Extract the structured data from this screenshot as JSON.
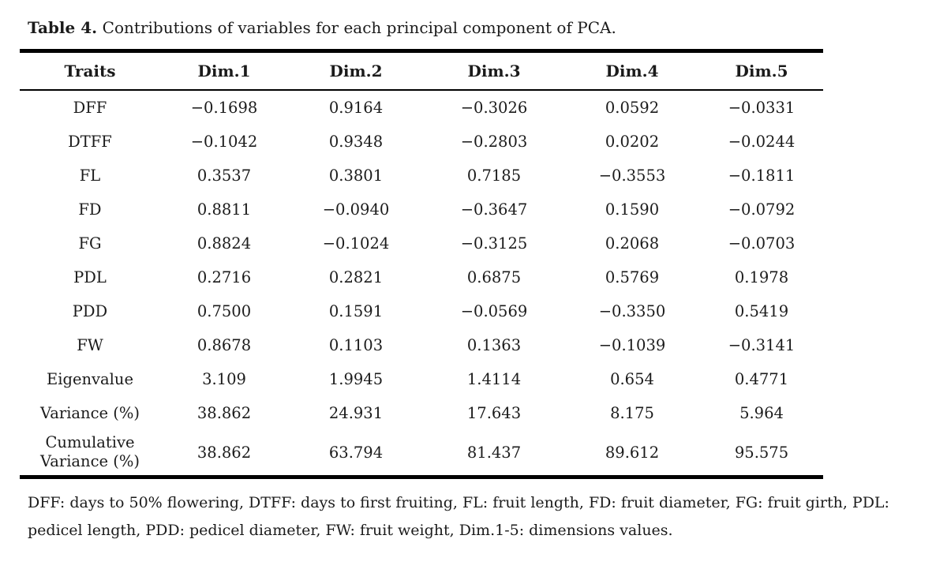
{
  "page": {
    "title_label": "Table 4.",
    "title_text": "Contributions of variables for each principal component of PCA.",
    "footnote": "DFF: days to 50% flowering, DTFF: days to first fruiting, FL: fruit length, FD: fruit diameter, FG: fruit girth, PDL: pedicel length, PDD: pedicel diameter, FW: fruit weight, Dim.1-5: dimensions values."
  },
  "table": {
    "columns": [
      "Traits",
      "Dim.1",
      "Dim.2",
      "Dim.3",
      "Dim.4",
      "Dim.5"
    ],
    "rows": [
      {
        "trait": "DFF",
        "values": [
          "−0.1698",
          "0.9164",
          "−0.3026",
          "0.0592",
          "−0.0331"
        ]
      },
      {
        "trait": "DTFF",
        "values": [
          "−0.1042",
          "0.9348",
          "−0.2803",
          "0.0202",
          "−0.0244"
        ]
      },
      {
        "trait": "FL",
        "values": [
          "0.3537",
          "0.3801",
          "0.7185",
          "−0.3553",
          "−0.1811"
        ]
      },
      {
        "trait": "FD",
        "values": [
          "0.8811",
          "−0.0940",
          "−0.3647",
          "0.1590",
          "−0.0792"
        ]
      },
      {
        "trait": "FG",
        "values": [
          "0.8824",
          "−0.1024",
          "−0.3125",
          "0.2068",
          "−0.0703"
        ]
      },
      {
        "trait": "PDL",
        "values": [
          "0.2716",
          "0.2821",
          "0.6875",
          "0.5769",
          "0.1978"
        ]
      },
      {
        "trait": "PDD",
        "values": [
          "0.7500",
          "0.1591",
          "−0.0569",
          "−0.3350",
          "0.5419"
        ]
      },
      {
        "trait": "FW",
        "values": [
          "0.8678",
          "0.1103",
          "0.1363",
          "−0.1039",
          "−0.3141"
        ]
      },
      {
        "trait": "Eigenvalue",
        "values": [
          "3.109",
          "1.9945",
          "1.4114",
          "0.654",
          "0.4771"
        ]
      },
      {
        "trait": "Variance (%)",
        "values": [
          "38.862",
          "24.931",
          "17.643",
          "8.175",
          "5.964"
        ]
      },
      {
        "trait": "Cumulative Variance (%)",
        "values": [
          "38.862",
          "63.794",
          "81.437",
          "89.612",
          "95.575"
        ]
      }
    ]
  }
}
